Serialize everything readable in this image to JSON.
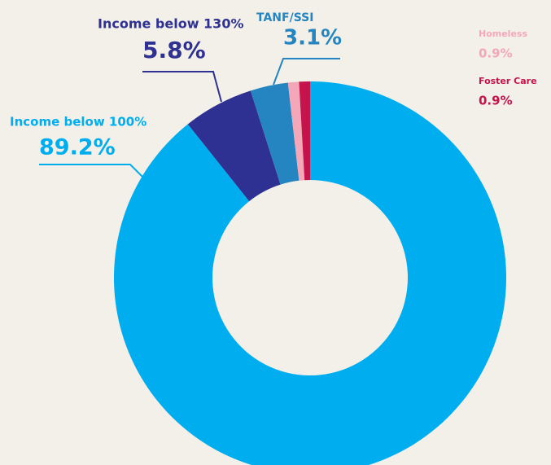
{
  "chart_data": {
    "type": "donut",
    "categories": [
      "Income below 100%",
      "Income below 130%",
      "TANF/SSI",
      "Homeless",
      "Foster Care"
    ],
    "values": [
      89.2,
      5.8,
      3.1,
      0.9,
      0.9
    ],
    "value_labels": [
      "89.2%",
      "5.8%",
      "3.1%",
      "0.9%",
      "0.9%"
    ],
    "colors": [
      "#00aeef",
      "#2e3192",
      "#2585c0",
      "#f4a7b9",
      "#c4144b"
    ]
  }
}
